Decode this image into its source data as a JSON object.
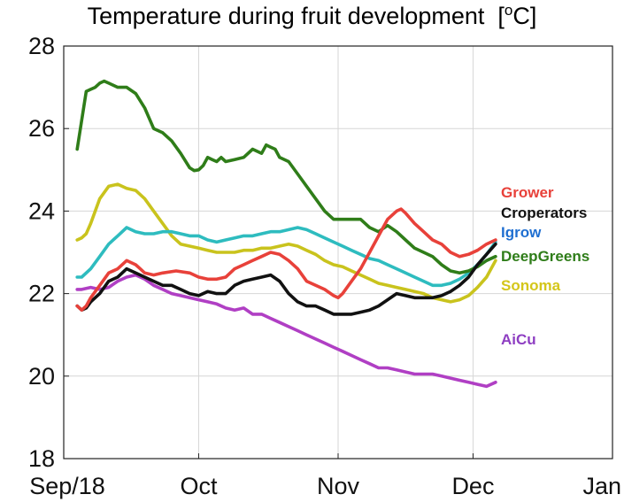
{
  "chart_data": {
    "type": "line",
    "title": "Temperature during fruit development",
    "title_unit_prefix": "[",
    "title_unit_sup": "o",
    "title_unit_suffix": "C]",
    "xlabel": "",
    "ylabel": "",
    "ylim": [
      18,
      28
    ],
    "y_ticks": [
      18,
      20,
      22,
      24,
      26,
      28
    ],
    "xlim": [
      0,
      105
    ],
    "x_ticks": [
      {
        "x": 0,
        "label": "Sep/18"
      },
      {
        "x": 30,
        "label": "Oct"
      },
      {
        "x": 61,
        "label": "Nov"
      },
      {
        "x": 91,
        "label": "Dec"
      },
      {
        "x": 122,
        "label": "Jan"
      }
    ],
    "grid": true,
    "legend_placement": "right (labels beside line ends)",
    "series": [
      {
        "name": "Grower",
        "color": "#e8413a",
        "x": [
          3,
          4,
          5,
          6,
          8,
          10,
          12,
          14,
          16,
          17,
          18,
          20,
          22,
          25,
          28,
          30,
          32,
          34,
          36,
          38,
          40,
          42,
          44,
          46,
          48,
          50,
          52,
          54,
          56,
          58,
          60,
          61,
          62,
          64,
          66,
          68,
          70,
          72,
          74,
          75,
          76,
          78,
          80,
          82,
          84,
          86,
          88,
          90,
          92,
          94,
          96
        ],
        "values": [
          21.7,
          21.6,
          21.7,
          21.9,
          22.2,
          22.5,
          22.6,
          22.8,
          22.7,
          22.6,
          22.5,
          22.45,
          22.5,
          22.55,
          22.5,
          22.4,
          22.35,
          22.35,
          22.4,
          22.6,
          22.7,
          22.8,
          22.9,
          23.0,
          22.95,
          22.8,
          22.6,
          22.3,
          22.2,
          22.1,
          21.95,
          21.9,
          22.0,
          22.3,
          22.6,
          23.0,
          23.4,
          23.8,
          24.0,
          24.05,
          23.95,
          23.7,
          23.5,
          23.3,
          23.2,
          23.0,
          22.9,
          22.95,
          23.05,
          23.2,
          23.3
        ]
      },
      {
        "name": "Croperators",
        "color": "#111111",
        "x": [
          3,
          4,
          5,
          6,
          8,
          10,
          12,
          14,
          16,
          18,
          20,
          22,
          24,
          26,
          28,
          30,
          32,
          34,
          36,
          38,
          40,
          42,
          44,
          46,
          48,
          50,
          52,
          54,
          56,
          58,
          60,
          62,
          64,
          66,
          68,
          70,
          72,
          74,
          76,
          78,
          80,
          82,
          84,
          86,
          88,
          90,
          92,
          94,
          96
        ],
        "values": [
          21.7,
          21.6,
          21.65,
          21.8,
          22.0,
          22.3,
          22.4,
          22.6,
          22.5,
          22.4,
          22.3,
          22.2,
          22.2,
          22.1,
          22.0,
          21.95,
          22.05,
          22.0,
          22.0,
          22.2,
          22.3,
          22.35,
          22.4,
          22.45,
          22.3,
          22.0,
          21.8,
          21.7,
          21.7,
          21.6,
          21.5,
          21.5,
          21.5,
          21.55,
          21.6,
          21.7,
          21.85,
          22.0,
          21.95,
          21.9,
          21.9,
          21.9,
          21.95,
          22.05,
          22.2,
          22.4,
          22.7,
          22.95,
          23.2
        ]
      },
      {
        "name": "Igrow",
        "color": "#2ebcbf",
        "x": [
          3,
          4,
          6,
          8,
          10,
          12,
          14,
          16,
          18,
          20,
          22,
          24,
          26,
          28,
          30,
          32,
          34,
          36,
          38,
          40,
          42,
          44,
          46,
          48,
          50,
          52,
          54,
          56,
          58,
          60,
          62,
          64,
          66,
          68,
          70,
          72,
          74,
          76,
          78,
          80,
          82,
          84,
          86,
          88,
          90,
          92,
          94,
          96
        ],
        "values": [
          22.4,
          22.4,
          22.6,
          22.9,
          23.2,
          23.4,
          23.6,
          23.5,
          23.45,
          23.45,
          23.5,
          23.5,
          23.45,
          23.4,
          23.4,
          23.3,
          23.25,
          23.3,
          23.35,
          23.4,
          23.4,
          23.45,
          23.5,
          23.5,
          23.55,
          23.6,
          23.55,
          23.45,
          23.35,
          23.25,
          23.15,
          23.05,
          22.95,
          22.85,
          22.8,
          22.7,
          22.6,
          22.5,
          22.4,
          22.3,
          22.2,
          22.2,
          22.25,
          22.35,
          22.5,
          22.7,
          22.95,
          23.25
        ]
      },
      {
        "name": "DeepGreens",
        "color": "#2f7d19",
        "x": [
          3,
          4,
          5,
          6,
          7,
          8,
          9,
          10,
          11,
          12,
          14,
          16,
          18,
          20,
          22,
          24,
          26,
          28,
          29,
          30,
          31,
          32,
          33,
          34,
          35,
          36,
          38,
          40,
          42,
          44,
          45,
          46,
          47,
          48,
          50,
          52,
          54,
          56,
          58,
          60,
          62,
          64,
          66,
          68,
          70,
          72,
          74,
          76,
          78,
          80,
          82,
          84,
          86,
          88,
          90,
          92,
          94,
          96
        ],
        "values": [
          25.5,
          26.2,
          26.9,
          26.95,
          27.0,
          27.1,
          27.15,
          27.1,
          27.05,
          27.0,
          27.0,
          26.85,
          26.5,
          26.0,
          25.9,
          25.7,
          25.4,
          25.05,
          24.98,
          25.0,
          25.1,
          25.3,
          25.25,
          25.2,
          25.3,
          25.2,
          25.25,
          25.3,
          25.5,
          25.4,
          25.6,
          25.55,
          25.5,
          25.3,
          25.2,
          24.9,
          24.6,
          24.3,
          24.0,
          23.8,
          23.8,
          23.8,
          23.8,
          23.6,
          23.5,
          23.65,
          23.5,
          23.3,
          23.1,
          23.0,
          22.9,
          22.7,
          22.55,
          22.5,
          22.55,
          22.65,
          22.8,
          22.9
        ]
      },
      {
        "name": "Sonoma",
        "color": "#c9c31d",
        "x": [
          3,
          4,
          5,
          6,
          7,
          8,
          10,
          12,
          14,
          16,
          18,
          20,
          22,
          24,
          26,
          28,
          30,
          32,
          34,
          36,
          38,
          40,
          42,
          44,
          46,
          48,
          50,
          52,
          54,
          56,
          58,
          60,
          62,
          64,
          66,
          68,
          70,
          72,
          74,
          76,
          78,
          80,
          82,
          84,
          86,
          88,
          90,
          92,
          94,
          96
        ],
        "values": [
          23.3,
          23.35,
          23.45,
          23.7,
          24.0,
          24.3,
          24.6,
          24.65,
          24.55,
          24.5,
          24.3,
          24.0,
          23.7,
          23.4,
          23.2,
          23.15,
          23.1,
          23.05,
          23.0,
          23.0,
          23.0,
          23.05,
          23.05,
          23.1,
          23.1,
          23.15,
          23.2,
          23.15,
          23.05,
          22.95,
          22.8,
          22.7,
          22.65,
          22.55,
          22.45,
          22.35,
          22.25,
          22.2,
          22.15,
          22.1,
          22.05,
          22.0,
          21.9,
          21.85,
          21.8,
          21.85,
          21.95,
          22.15,
          22.4,
          22.8
        ]
      },
      {
        "name": "AiCu",
        "color": "#b03fc4",
        "x": [
          3,
          4,
          6,
          8,
          10,
          12,
          14,
          16,
          18,
          20,
          22,
          24,
          26,
          28,
          30,
          32,
          34,
          36,
          38,
          40,
          42,
          44,
          46,
          48,
          50,
          52,
          54,
          56,
          58,
          60,
          62,
          64,
          66,
          68,
          70,
          72,
          74,
          76,
          78,
          80,
          82,
          84,
          86,
          88,
          90,
          92,
          94,
          96
        ],
        "values": [
          22.1,
          22.1,
          22.15,
          22.1,
          22.15,
          22.3,
          22.4,
          22.45,
          22.35,
          22.2,
          22.1,
          22.0,
          21.95,
          21.9,
          21.85,
          21.8,
          21.75,
          21.65,
          21.6,
          21.65,
          21.5,
          21.5,
          21.4,
          21.3,
          21.2,
          21.1,
          21.0,
          20.9,
          20.8,
          20.7,
          20.6,
          20.5,
          20.4,
          20.3,
          20.2,
          20.2,
          20.15,
          20.1,
          20.05,
          20.05,
          20.05,
          20.0,
          19.95,
          19.9,
          19.85,
          19.8,
          19.75,
          19.85
        ]
      }
    ]
  },
  "legend_labels": [
    {
      "name": "Grower",
      "color": "#e8413a"
    },
    {
      "name": "Croperators",
      "color": "#111111"
    },
    {
      "name": "Igrow",
      "color": "#1f6fd1"
    },
    {
      "name": "DeepGreens",
      "color": "#2f7d19"
    },
    {
      "name": "Sonoma",
      "color": "#d4c61a"
    },
    {
      "name": "AiCu",
      "color": "#8e3ec2"
    }
  ]
}
